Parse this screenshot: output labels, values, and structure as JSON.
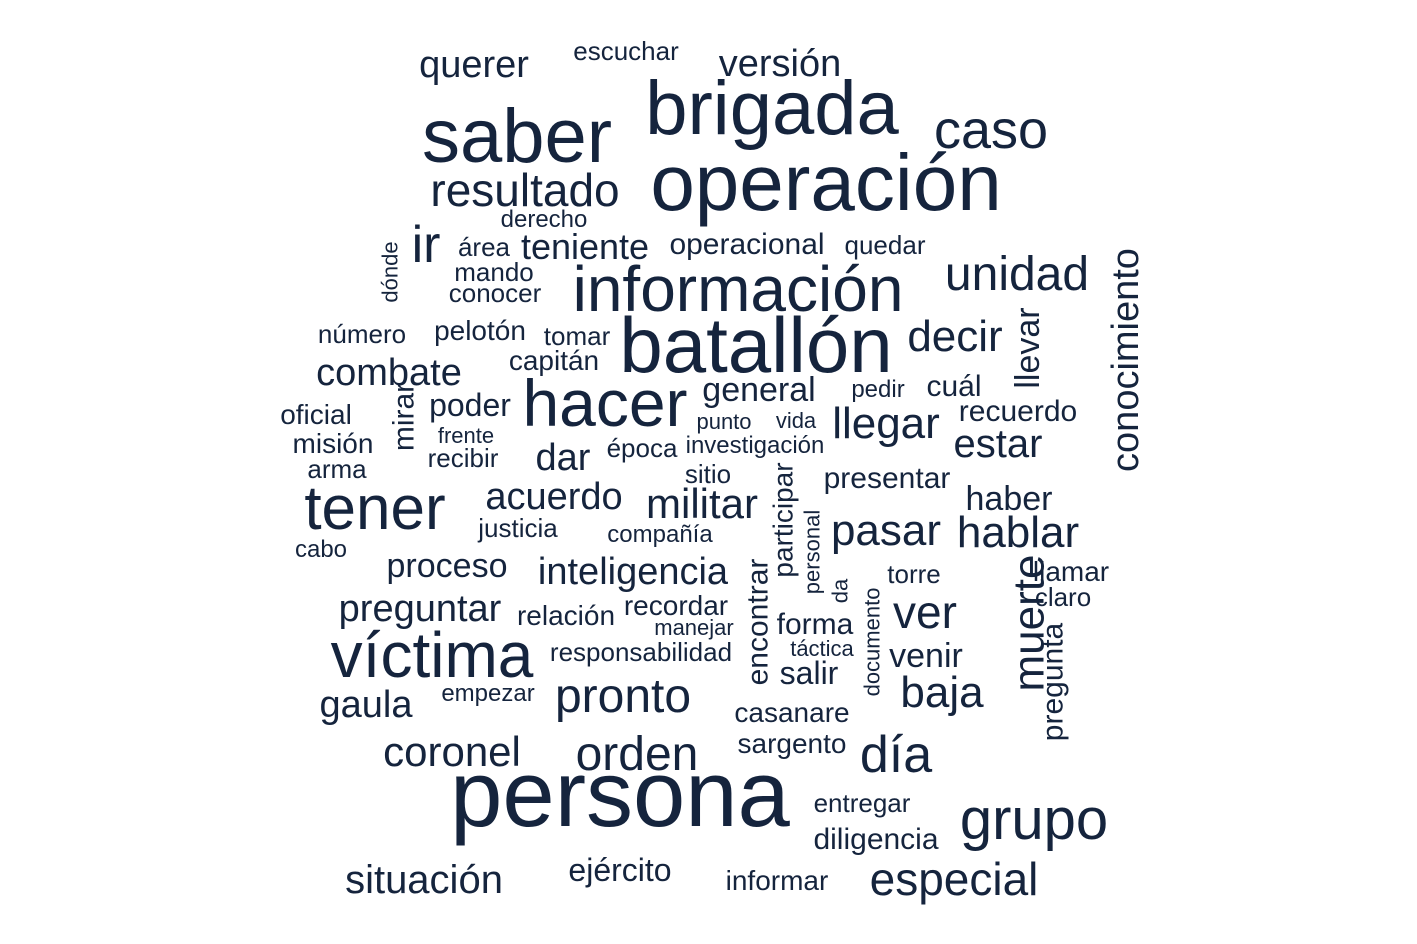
{
  "word_color": "#15243d",
  "words": [
    {
      "text": "persona"
    },
    {
      "text": "operación"
    },
    {
      "text": "batallón"
    },
    {
      "text": "brigada"
    },
    {
      "text": "saber"
    },
    {
      "text": "información"
    },
    {
      "text": "hacer"
    },
    {
      "text": "víctima"
    },
    {
      "text": "tener"
    },
    {
      "text": "grupo"
    },
    {
      "text": "caso"
    },
    {
      "text": "resultado"
    },
    {
      "text": "unidad"
    },
    {
      "text": "pronto"
    },
    {
      "text": "orden"
    },
    {
      "text": "día"
    },
    {
      "text": "decir"
    },
    {
      "text": "llegar"
    },
    {
      "text": "especial"
    },
    {
      "text": "ver"
    },
    {
      "text": "militar"
    },
    {
      "text": "pasar"
    },
    {
      "text": "hablar"
    },
    {
      "text": "baja"
    },
    {
      "text": "estar"
    },
    {
      "text": "coronel"
    },
    {
      "text": "situación"
    },
    {
      "text": "ir"
    },
    {
      "text": "versión"
    },
    {
      "text": "querer"
    },
    {
      "text": "teniente"
    },
    {
      "text": "acuerdo"
    },
    {
      "text": "inteligencia"
    },
    {
      "text": "preguntar"
    },
    {
      "text": "combate"
    },
    {
      "text": "dar"
    },
    {
      "text": "gaula"
    },
    {
      "text": "muerte"
    },
    {
      "text": "conocimiento"
    },
    {
      "text": "general"
    },
    {
      "text": "poder"
    },
    {
      "text": "proceso"
    },
    {
      "text": "venir"
    },
    {
      "text": "haber"
    },
    {
      "text": "ejército"
    },
    {
      "text": "diligencia"
    },
    {
      "text": "presentar"
    },
    {
      "text": "llevar"
    },
    {
      "text": "operacional"
    },
    {
      "text": "informar"
    },
    {
      "text": "salir"
    },
    {
      "text": "forma"
    },
    {
      "text": "recuerdo"
    },
    {
      "text": "cuál"
    },
    {
      "text": "encontrar"
    },
    {
      "text": "casanare"
    },
    {
      "text": "sargento"
    },
    {
      "text": "pregunta"
    },
    {
      "text": "llamar"
    },
    {
      "text": "capitán"
    },
    {
      "text": "pelotón"
    },
    {
      "text": "escuchar"
    },
    {
      "text": "oficial"
    },
    {
      "text": "mirar"
    },
    {
      "text": "participar"
    },
    {
      "text": "entregar"
    },
    {
      "text": "recordar"
    },
    {
      "text": "relación"
    },
    {
      "text": "responsabilidad"
    },
    {
      "text": "misión"
    },
    {
      "text": "recibir"
    },
    {
      "text": "claro"
    },
    {
      "text": "conocer"
    },
    {
      "text": "mando"
    },
    {
      "text": "quedar"
    },
    {
      "text": "número"
    },
    {
      "text": "tomar"
    },
    {
      "text": "derecho"
    },
    {
      "text": "área"
    },
    {
      "text": "justicia"
    },
    {
      "text": "compañía"
    },
    {
      "text": "sitio"
    },
    {
      "text": "época"
    },
    {
      "text": "torre"
    },
    {
      "text": "arma"
    },
    {
      "text": "empezar"
    },
    {
      "text": "investigación"
    },
    {
      "text": "pedir"
    },
    {
      "text": "táctica"
    },
    {
      "text": "manejar"
    },
    {
      "text": "vida"
    },
    {
      "text": "punto"
    },
    {
      "text": "frente"
    },
    {
      "text": "personal"
    },
    {
      "text": "documento"
    },
    {
      "text": "cabo"
    },
    {
      "text": "dónde"
    },
    {
      "text": "da"
    }
  ]
}
